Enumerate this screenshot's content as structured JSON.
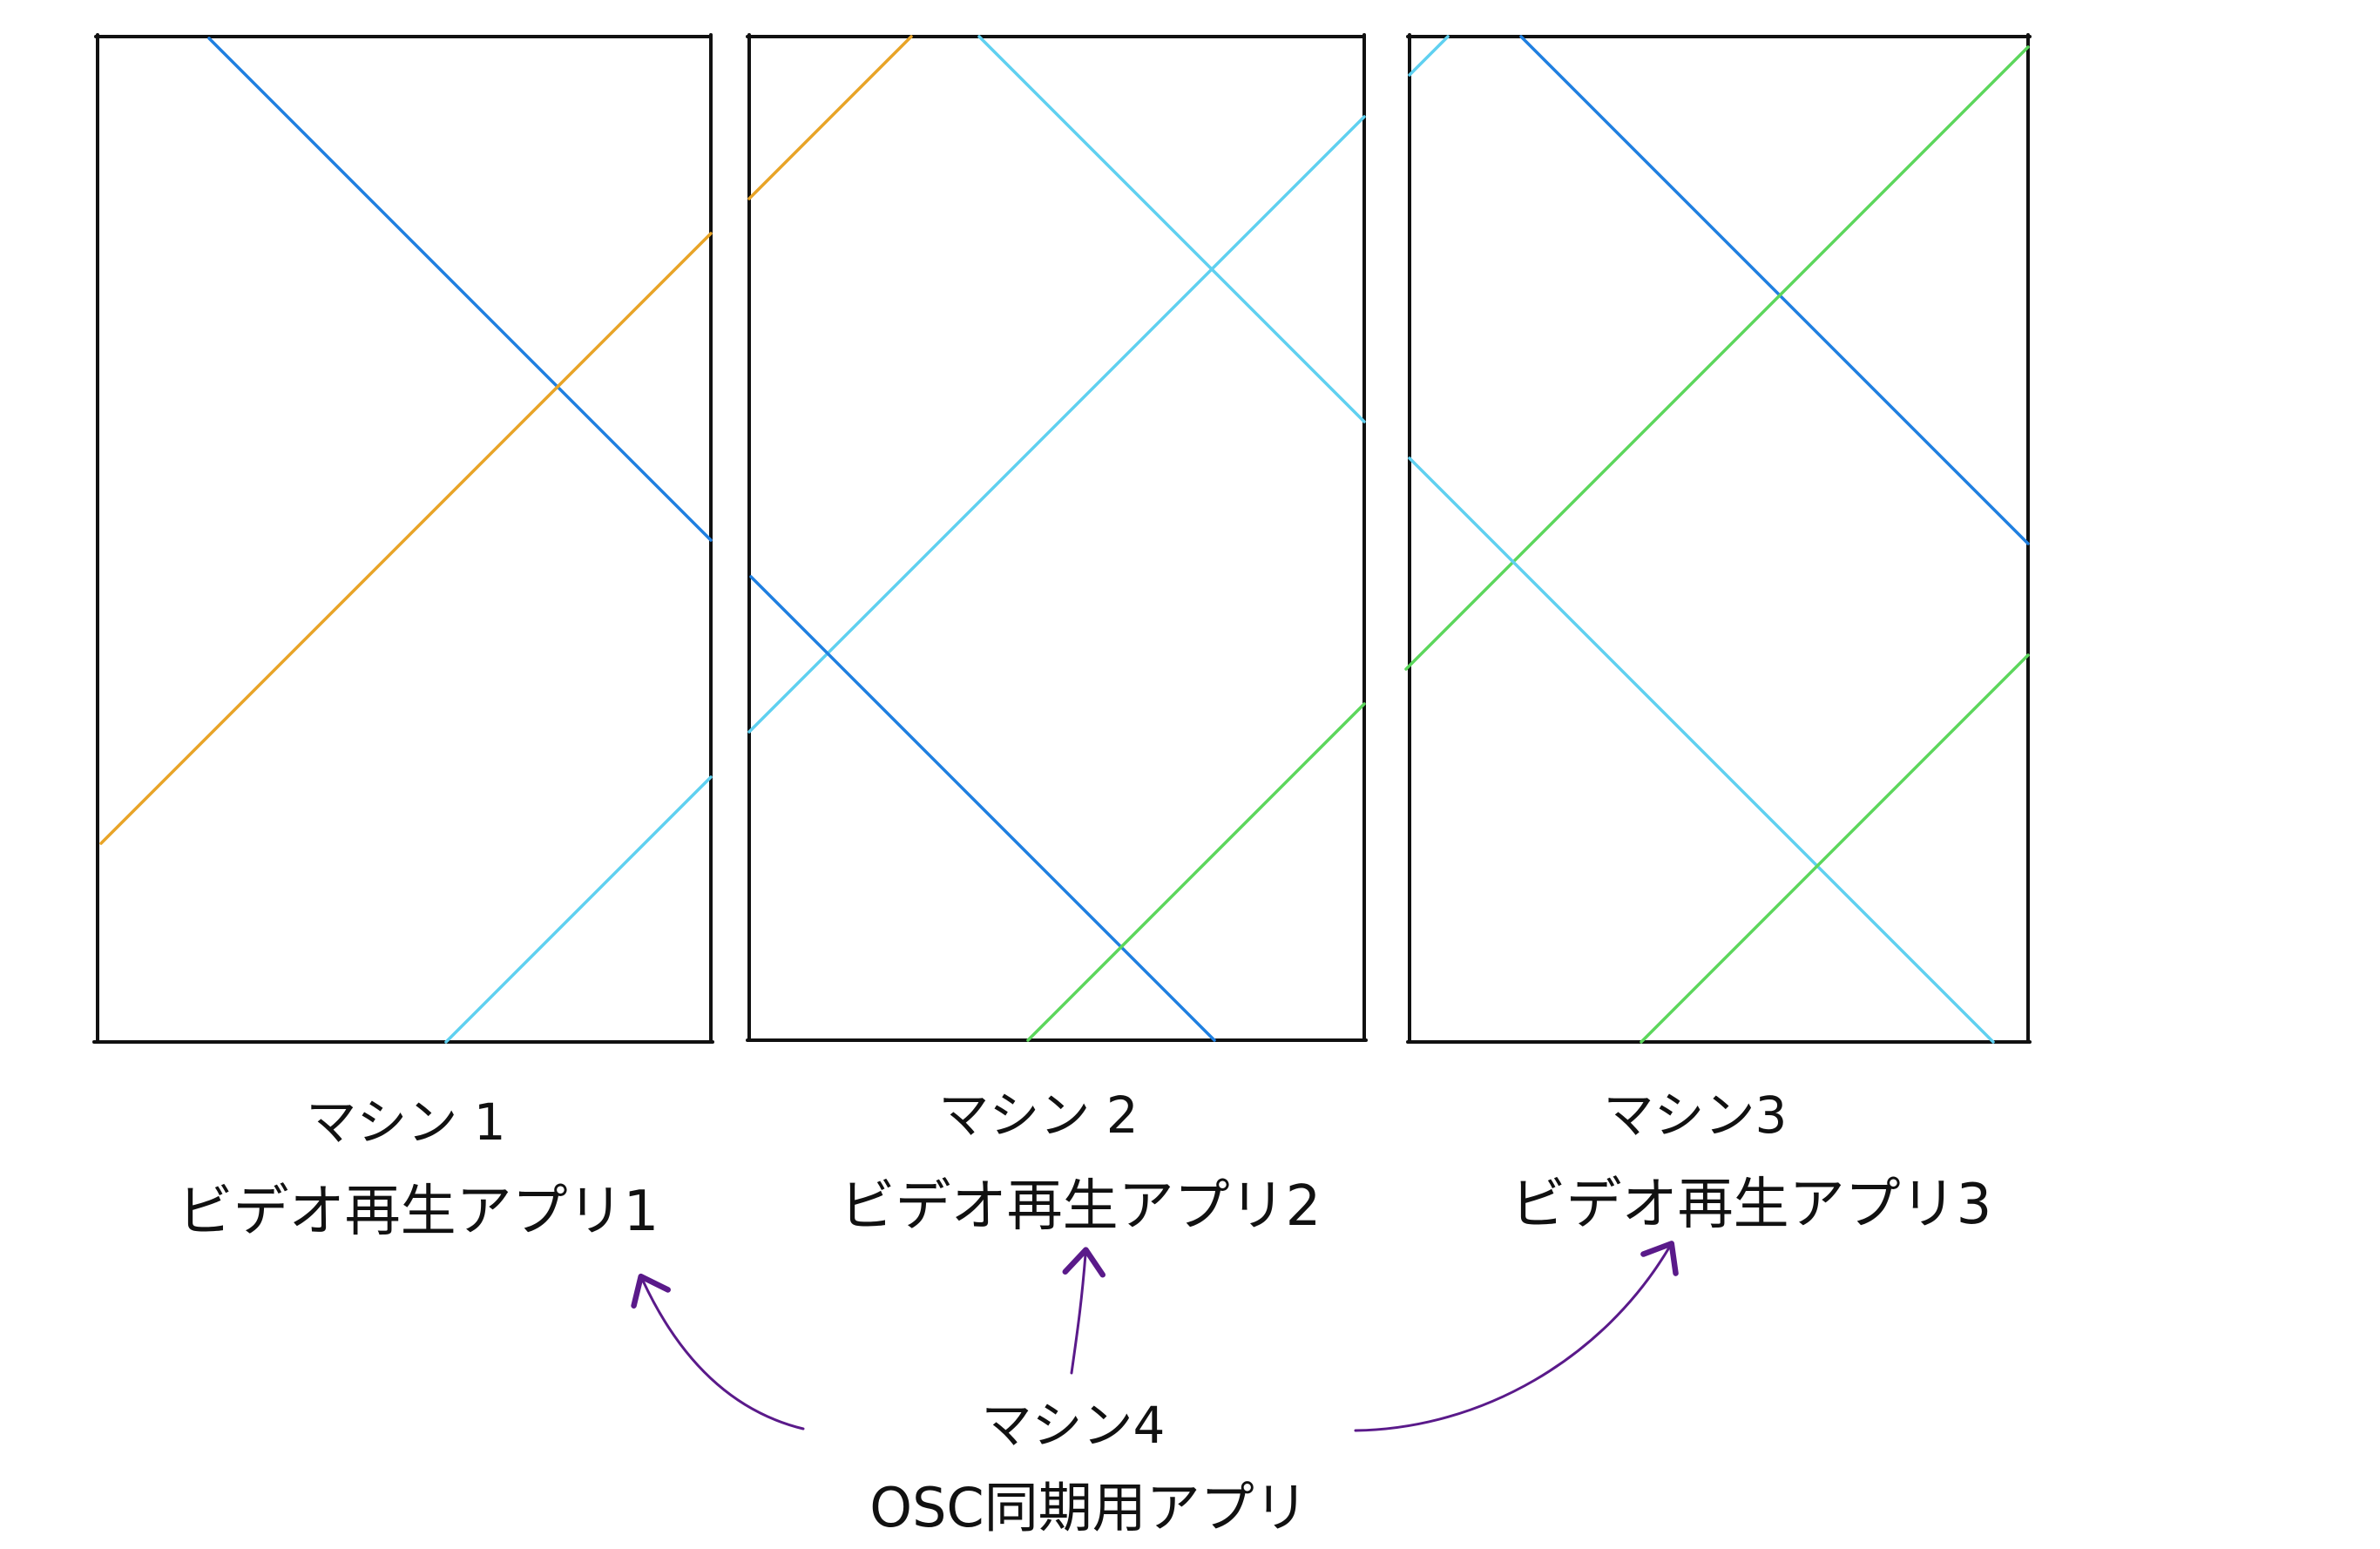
{
  "colors": {
    "frame": "#111111",
    "blue": "#1f7fe0",
    "cyan": "#5fd0f0",
    "orange": "#e8a427",
    "green": "#5cd65c",
    "arrow": "#5a1a8a",
    "text": "#111111"
  },
  "machines": [
    {
      "name": "マシン 1",
      "app": "ビデオ再生アプリ1",
      "lines": [
        "blue",
        "orange",
        "cyan"
      ]
    },
    {
      "name": "マシン 2",
      "app": "ビデオ再生アプリ2",
      "lines": [
        "orange",
        "cyan",
        "cyan",
        "blue",
        "green"
      ]
    },
    {
      "name": "マシン3",
      "app": "ビデオ再生アプリ3",
      "lines": [
        "cyan",
        "blue",
        "green",
        "cyan",
        "green"
      ]
    }
  ],
  "controller": {
    "name": "マシン4",
    "app": "OSC同期用アプリ"
  }
}
